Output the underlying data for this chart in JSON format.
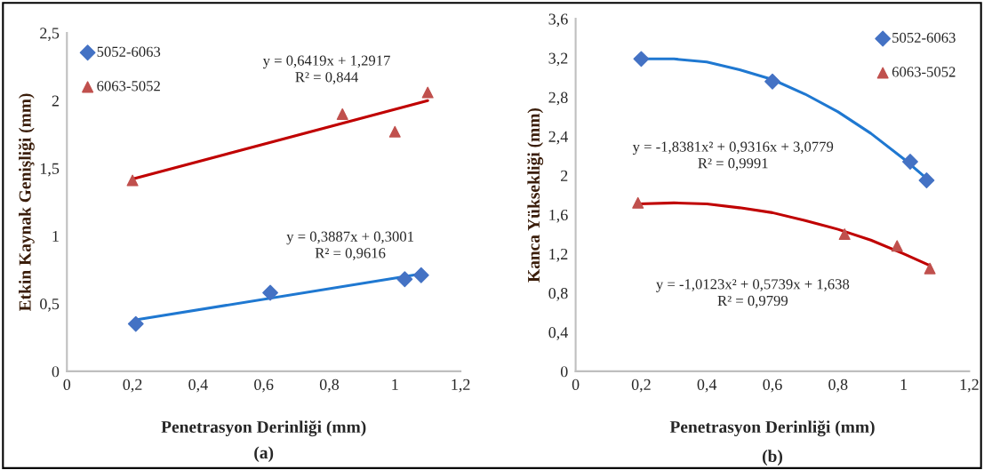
{
  "chart_data": [
    {
      "type": "scatter",
      "xlabel": "Penetrasyon Derinliği (mm)",
      "ylabel": "Etkin Kaynak Genişliği (mm)",
      "xlim": [
        0,
        1.2
      ],
      "xticks": [
        0,
        {
          "value": 0.2,
          "label": "0,2"
        },
        {
          "value": 0.4,
          "label": "0,4"
        },
        {
          "value": 0.6,
          "label": "0,6"
        },
        {
          "value": 0.8,
          "label": "0,8"
        },
        1,
        {
          "value": 1.2,
          "label": "1,2"
        }
      ],
      "ylim": [
        0,
        2.5
      ],
      "yticks": [
        0,
        {
          "value": 0.5,
          "label": "0,5"
        },
        1,
        {
          "value": 1.5,
          "label": "1,5"
        },
        2,
        {
          "value": 2.5,
          "label": "2,5"
        }
      ],
      "grid": false,
      "legend": "top left",
      "series": [
        {
          "name": "5052-6063",
          "color": "#4472c4",
          "marker": "diamond",
          "x": [
            0.21,
            0.62,
            1.03,
            1.08
          ],
          "values": [
            0.35,
            0.58,
            0.68,
            0.71
          ]
        },
        {
          "name": "6063-5052",
          "color": "#c0504d",
          "marker": "triangle",
          "x": [
            0.2,
            0.84,
            1.0,
            1.1
          ],
          "values": [
            1.41,
            1.9,
            1.77,
            2.06
          ]
        },
        {
          "type": "line",
          "color": "#1f78d1",
          "marker": "none",
          "x": [
            0.21,
            1.08
          ],
          "values": [
            0.38,
            0.72
          ]
        },
        {
          "type": "line",
          "color": "#c00000",
          "marker": "none",
          "x": [
            0.2,
            1.1
          ],
          "values": [
            1.42,
            2.0
          ]
        }
      ],
      "annotations": [
        "y = 0,6419x + 1,2917\nR² = 0,844",
        "y = 0,3887x + 0,3001\nR² = 0,9616",
        "(a)"
      ]
    },
    {
      "type": "scatter",
      "xlabel": "Penetrasyon Derinliği (mm)",
      "ylabel": "Kanca Yüksekliği (mm)",
      "xlim": [
        0,
        1.2
      ],
      "xticks": [
        0,
        {
          "value": 0.2,
          "label": "0,2"
        },
        {
          "value": 0.4,
          "label": "0,4"
        },
        {
          "value": 0.6,
          "label": "0,6"
        },
        {
          "value": 0.8,
          "label": "0,8"
        },
        1,
        {
          "value": 1.2,
          "label": "1,2"
        }
      ],
      "ylim": [
        0,
        3.6
      ],
      "yticks": [
        0,
        {
          "value": 0.4,
          "label": "0,4"
        },
        {
          "value": 0.8,
          "label": "0,8"
        },
        {
          "value": 1.2,
          "label": "1,2"
        },
        {
          "value": 1.6,
          "label": "1,6"
        },
        2,
        {
          "value": 2.4,
          "label": "2,4"
        },
        {
          "value": 2.8,
          "label": "2,8"
        },
        {
          "value": 3.2,
          "label": "3,2"
        },
        {
          "value": 3.6,
          "label": "3,6"
        }
      ],
      "grid": false,
      "legend": "top right",
      "series": [
        {
          "name": "5052-6063",
          "color": "#4472c4",
          "marker": "diamond",
          "x": [
            0.2,
            0.6,
            1.02,
            1.07
          ],
          "values": [
            3.19,
            2.96,
            2.14,
            1.95
          ]
        },
        {
          "name": "6063-5052",
          "color": "#c0504d",
          "marker": "triangle",
          "x": [
            0.19,
            0.82,
            0.98,
            1.08
          ],
          "values": [
            1.72,
            1.4,
            1.28,
            1.05
          ]
        },
        {
          "type": "line",
          "color": "#1f78d1",
          "marker": "none",
          "x": [
            0.2,
            0.3,
            0.4,
            0.5,
            0.6,
            0.7,
            0.8,
            0.9,
            1.0,
            1.07
          ],
          "values": [
            3.19,
            3.19,
            3.16,
            3.08,
            2.98,
            2.83,
            2.65,
            2.43,
            2.17,
            1.97
          ]
        },
        {
          "type": "line",
          "color": "#c00000",
          "marker": "none",
          "x": [
            0.19,
            0.3,
            0.4,
            0.5,
            0.6,
            0.7,
            0.8,
            0.9,
            1.0,
            1.08
          ],
          "values": [
            1.71,
            1.72,
            1.71,
            1.67,
            1.62,
            1.54,
            1.45,
            1.34,
            1.2,
            1.08
          ]
        }
      ],
      "annotations": [
        "y = -1,8381x² + 0,9316x + 3,0779\nR² = 0,9991",
        "y = -1,0123x² + 0,5739x + 1,638\nR² = 0,9799",
        "(b)"
      ]
    }
  ]
}
